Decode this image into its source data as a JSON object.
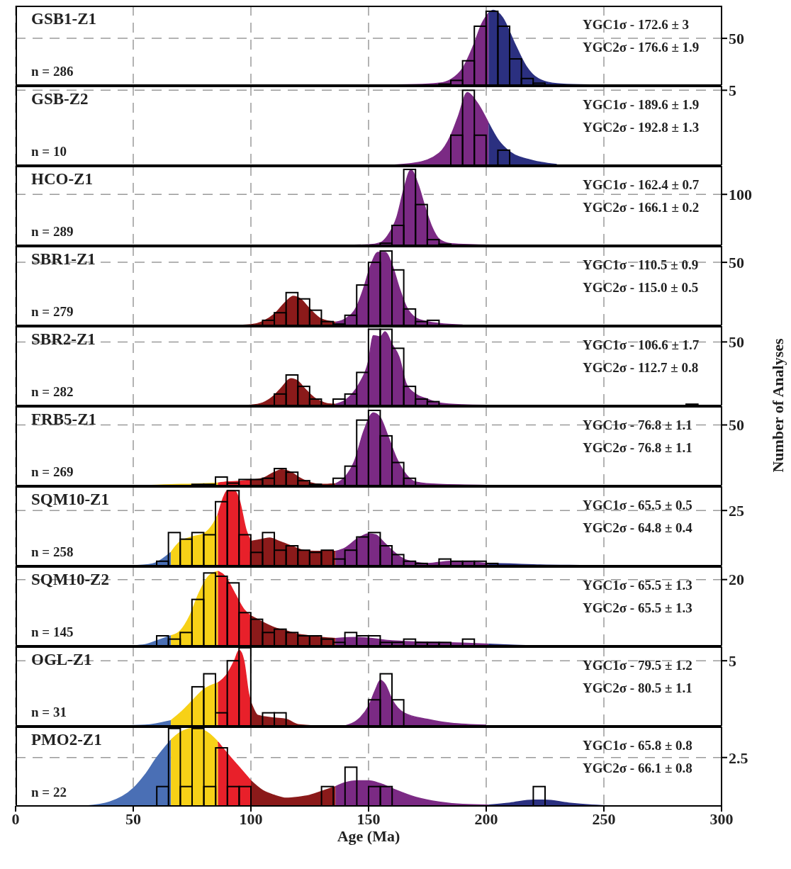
{
  "chart_data": [
    {
      "type": "histogram",
      "title": "GSB1-Z1",
      "annotations": [
        "n = 286",
        "YGC1σ - 172.6 ± 3",
        "YGC2σ - 176.6 ± 1.9"
      ],
      "bins": [
        180,
        185,
        190,
        195,
        200,
        205,
        210,
        215,
        220,
        225
      ],
      "values": [
        1,
        5,
        26,
        63,
        79,
        63,
        28,
        7,
        2
      ],
      "color": "#000000",
      "series": [
        {
          "type": "area",
          "color": "#7b2a84",
          "x": [
            150,
            170,
            180,
            185,
            190,
            195,
            198,
            201
          ],
          "values": [
            0,
            0.5,
            2,
            6,
            18,
            45,
            65,
            77
          ]
        },
        {
          "type": "area",
          "color": "#2b3080",
          "x": [
            201,
            203,
            207,
            212,
            217,
            222,
            230,
            240,
            250
          ],
          "values": [
            77,
            80,
            72,
            45,
            20,
            7,
            1.5,
            0.3,
            0
          ]
        }
      ],
      "xlim": [
        0,
        300
      ],
      "xticks": [
        0,
        50,
        100,
        150,
        200,
        250,
        300
      ],
      "ylim": [
        0,
        85
      ],
      "yticks": [
        50
      ],
      "grid": true,
      "tick_labels": "y"
    },
    {
      "type": "histogram",
      "title": "GSB-Z2",
      "annotations": [
        "n = 10",
        "YGC1σ - 189.6 ± 1.9",
        "YGC2σ - 192.8 ± 1.3"
      ],
      "bins": [
        185,
        190,
        195,
        200,
        205,
        210
      ],
      "values": [
        2,
        5,
        2,
        0,
        1
      ],
      "color": "#000000",
      "series": [
        {
          "type": "area",
          "color": "#7b2a84",
          "x": [
            160,
            170,
            180,
            185,
            188,
            192,
            196,
            201
          ],
          "values": [
            0,
            0.15,
            0.8,
            2,
            3.2,
            4.85,
            4.2,
            2.8
          ]
        },
        {
          "type": "area",
          "color": "#2b3080",
          "x": [
            201,
            205,
            210,
            220,
            230
          ],
          "values": [
            2.8,
            1.7,
            0.9,
            0.3,
            0.05
          ]
        }
      ],
      "xlim": [
        0,
        300
      ],
      "xticks": [
        0,
        50,
        100,
        150,
        200,
        250,
        300
      ],
      "ylim": [
        0,
        5.3
      ],
      "yticks": [
        5
      ],
      "grid": true,
      "tick_labels": "y"
    },
    {
      "type": "histogram",
      "title": "HCO-Z1",
      "annotations": [
        "n = 289",
        "YGC1σ - 162.4 ± 0.7",
        "YGC2σ - 166.1 ± 0.2"
      ],
      "bins": [
        155,
        160,
        165,
        170,
        175,
        180,
        185
      ],
      "values": [
        4,
        39,
        149,
        80,
        11,
        2
      ],
      "color": "#000000",
      "series": [
        {
          "type": "area",
          "color": "#7b2a84",
          "x": [
            140,
            150,
            155,
            158,
            162,
            165,
            168,
            171,
            174,
            177,
            180,
            185,
            195,
            205
          ],
          "values": [
            0,
            1,
            5,
            18,
            55,
            110,
            148,
            120,
            75,
            35,
            12,
            3,
            1,
            0
          ]
        }
      ],
      "xlim": [
        0,
        300
      ],
      "xticks": [
        0,
        50,
        100,
        150,
        200,
        250,
        300
      ],
      "ylim": [
        0,
        156
      ],
      "yticks": [
        100
      ],
      "grid": true,
      "tick_labels": "y"
    },
    {
      "type": "histogram",
      "title": "SBR1-Z1",
      "annotations": [
        "n = 279",
        "YGC1σ - 110.5 ± 0.9",
        "YGC2σ - 115.0 ± 0.5"
      ],
      "bins": [
        105,
        110,
        115,
        120,
        125,
        130,
        135,
        140,
        145,
        150,
        155,
        160,
        165,
        170,
        175,
        180
      ],
      "values": [
        4,
        10,
        26,
        21,
        12,
        3,
        1,
        8,
        32,
        50,
        59,
        44,
        13,
        3,
        4
      ],
      "color": "#000000",
      "series": [
        {
          "type": "area",
          "color": "#8b1a1a",
          "x": [
            95,
            100,
            105,
            110,
            115,
            118,
            121,
            125,
            130,
            136
          ],
          "values": [
            0,
            0.5,
            3,
            9,
            19,
            23,
            21,
            13,
            5,
            2.5
          ]
        },
        {
          "type": "area",
          "color": "#7b2a84",
          "x": [
            136,
            140,
            145,
            148,
            151,
            154,
            157,
            160,
            163,
            166,
            170,
            175,
            180,
            190
          ],
          "values": [
            2.5,
            5,
            15,
            30,
            48,
            58,
            58,
            48,
            30,
            15,
            6,
            3,
            1.5,
            0.3
          ]
        }
      ],
      "xlim": [
        0,
        300
      ],
      "xticks": [
        0,
        50,
        100,
        150,
        200,
        250,
        300
      ],
      "ylim": [
        0,
        63
      ],
      "yticks": [
        50
      ],
      "grid": true,
      "tick_labels": "y"
    },
    {
      "type": "histogram",
      "title": "SBR2-Z1",
      "ylabel": "Number of Analyses",
      "annotations": [
        "n = 282",
        "YGC1σ - 106.6 ± 1.7",
        "YGC2σ - 112.7 ± 0.8"
      ],
      "bins": [
        110,
        115,
        120,
        125,
        130,
        135,
        140,
        145,
        150,
        155,
        160,
        165,
        170,
        175,
        180,
        185,
        190,
        195,
        200,
        205,
        210,
        215,
        220,
        225,
        230,
        235,
        240,
        245,
        250,
        255,
        260,
        265,
        270,
        275,
        280,
        285,
        290
      ],
      "values": [
        9,
        24,
        15,
        5,
        0,
        5,
        9,
        26,
        60,
        60,
        45,
        15,
        5,
        3,
        0,
        0,
        0,
        0,
        0,
        0,
        0,
        0,
        0,
        0,
        0,
        0,
        0,
        0,
        0,
        0,
        0,
        0,
        0,
        0,
        0,
        1
      ],
      "color": "#000000",
      "series": [
        {
          "type": "area",
          "color": "#8b1a1a",
          "x": [
            95,
            100,
            105,
            110,
            113,
            117,
            120,
            123,
            127,
            130,
            133,
            136
          ],
          "values": [
            0,
            0.3,
            2,
            8,
            14,
            21,
            19,
            13,
            6,
            3,
            1.2,
            1
          ]
        },
        {
          "type": "area",
          "color": "#7b2a84",
          "x": [
            136,
            140,
            143,
            146,
            150,
            152,
            155,
            157,
            160,
            163,
            166,
            170,
            175,
            180,
            190,
            200
          ],
          "values": [
            1,
            4,
            9,
            17,
            35,
            55,
            54,
            58,
            48,
            38,
            17,
            9,
            5,
            2,
            0.5,
            0.1
          ]
        }
      ],
      "xlim": [
        0,
        300
      ],
      "xticks": [
        0,
        50,
        100,
        150,
        200,
        250,
        300
      ],
      "ylim": [
        0,
        62.5
      ],
      "yticks": [
        50
      ],
      "grid": true,
      "tick_labels": "y"
    },
    {
      "type": "histogram",
      "title": "FRB5-Z1",
      "annotations": [
        "n = 269",
        "YGC1σ - 76.8 ± 1.1",
        "YGC2σ - 76.8 ± 1.1"
      ],
      "bins": [
        75,
        80,
        85,
        90,
        95,
        100,
        105,
        110,
        115,
        120,
        125,
        130,
        135,
        140,
        145,
        150,
        155,
        160,
        165,
        170
      ],
      "values": [
        1,
        1,
        7,
        2,
        5,
        5,
        6,
        14,
        11,
        4,
        1,
        0,
        6,
        16,
        54,
        62,
        41,
        19,
        6
      ],
      "color": "#000000",
      "series": [
        {
          "type": "area",
          "color": "#f7d117",
          "x": [
            55,
            60,
            66,
            75,
            86
          ],
          "values": [
            0,
            0.3,
            0.8,
            1.2,
            2
          ]
        },
        {
          "type": "area",
          "color": "#e8202a",
          "x": [
            86,
            90,
            95,
            100
          ],
          "values": [
            2,
            3,
            3.5,
            4.5
          ]
        },
        {
          "type": "area",
          "color": "#8b1a1a",
          "x": [
            100,
            105,
            110,
            113,
            117,
            121,
            125,
            130,
            136
          ],
          "values": [
            4.5,
            6,
            11,
            13,
            11,
            6,
            2.5,
            1,
            1.5
          ]
        },
        {
          "type": "area",
          "color": "#7b2a84",
          "x": [
            136,
            140,
            144,
            148,
            152,
            155,
            158,
            162,
            166,
            170,
            180,
            200
          ],
          "values": [
            1.5,
            7,
            20,
            45,
            60,
            56,
            42,
            22,
            9,
            3,
            1,
            0.2
          ]
        }
      ],
      "xlim": [
        0,
        300
      ],
      "xticks": [
        0,
        50,
        100,
        150,
        200,
        250,
        300
      ],
      "ylim": [
        0,
        65.5
      ],
      "yticks": [
        50
      ],
      "grid": true,
      "tick_labels": "y"
    },
    {
      "type": "histogram",
      "title": "SQM10-Z1",
      "annotations": [
        "n = 258",
        "YGC1σ - 65.5 ± 0.5",
        "YGC2σ - 64.8 ± 0.4"
      ],
      "bins": [
        60,
        65,
        70,
        75,
        80,
        85,
        90,
        95,
        100,
        105,
        110,
        115,
        120,
        125,
        130,
        135,
        140,
        145,
        150,
        155,
        160,
        165,
        170,
        175,
        180,
        185,
        190,
        195,
        200,
        205
      ],
      "values": [
        2,
        15,
        12,
        15,
        14,
        29,
        34,
        14,
        6,
        15,
        7,
        9,
        7,
        6,
        7,
        3,
        7,
        13,
        15,
        9,
        5,
        2,
        1,
        0,
        3,
        2,
        2,
        2,
        1
      ],
      "color": "#000000",
      "series": [
        {
          "type": "area",
          "color": "#4a6fb5",
          "x": [
            50,
            55,
            60,
            66
          ],
          "values": [
            0,
            0.3,
            1.5,
            6
          ]
        },
        {
          "type": "area",
          "color": "#f7d117",
          "x": [
            66,
            70,
            75,
            80,
            84,
            86
          ],
          "values": [
            6,
            11,
            13,
            14.5,
            19,
            23
          ]
        },
        {
          "type": "area",
          "color": "#e8202a",
          "x": [
            86,
            88,
            90,
            93,
            95,
            98,
            100
          ],
          "values": [
            23,
            30,
            34,
            34,
            30,
            16,
            11
          ]
        },
        {
          "type": "area",
          "color": "#8b1a1a",
          "x": [
            100,
            105,
            108,
            112,
            117,
            122,
            127,
            132,
            136
          ],
          "values": [
            11,
            12,
            12.5,
            11,
            9,
            7,
            6.5,
            6.5,
            6.5
          ]
        },
        {
          "type": "area",
          "color": "#7b2a84",
          "x": [
            136,
            140,
            145,
            150,
            153,
            157,
            161,
            165,
            170,
            175,
            180,
            185,
            190,
            195,
            201
          ],
          "values": [
            6.5,
            8,
            12,
            14.5,
            14,
            10,
            6,
            3,
            1.5,
            1,
            1.5,
            2,
            2,
            1.5,
            1
          ]
        },
        {
          "type": "area",
          "color": "#2b3080",
          "x": [
            201,
            210,
            220,
            240,
            250
          ],
          "values": [
            1,
            0.8,
            0.4,
            0.1,
            0
          ]
        }
      ],
      "xlim": [
        0,
        300
      ],
      "xticks": [
        0,
        50,
        100,
        150,
        200,
        250,
        300
      ],
      "ylim": [
        0,
        36
      ],
      "yticks": [
        25
      ],
      "grid": true,
      "tick_labels": "y"
    },
    {
      "type": "histogram",
      "title": "SQM10-Z2",
      "annotations": [
        "n = 145",
        "YGC1σ - 65.5 ± 1.3",
        "YGC2σ - 65.5 ± 1.3"
      ],
      "bins": [
        60,
        65,
        70,
        75,
        80,
        85,
        90,
        95,
        100,
        105,
        110,
        115,
        120,
        125,
        130,
        135,
        140,
        145,
        150,
        155,
        160,
        165,
        170,
        175,
        180,
        185,
        190,
        195
      ],
      "values": [
        3,
        2,
        4,
        14,
        22,
        21,
        19,
        10,
        8,
        4,
        5,
        4,
        3,
        3,
        2,
        1,
        4,
        3,
        3,
        1,
        1,
        2,
        1,
        1,
        1,
        0,
        2
      ],
      "color": "#000000",
      "series": [
        {
          "type": "area",
          "color": "#4a6fb5",
          "x": [
            50,
            55,
            60,
            66
          ],
          "values": [
            0,
            0.3,
            1.5,
            3
          ]
        },
        {
          "type": "area",
          "color": "#f7d117",
          "x": [
            66,
            70,
            74,
            78,
            82,
            86
          ],
          "values": [
            3,
            4.5,
            9,
            16,
            21,
            22.5
          ]
        },
        {
          "type": "area",
          "color": "#e8202a",
          "x": [
            86,
            89,
            93,
            97,
            100
          ],
          "values": [
            22.5,
            21,
            16,
            11,
            9
          ]
        },
        {
          "type": "area",
          "color": "#8b1a1a",
          "x": [
            100,
            104,
            110,
            115,
            120,
            125,
            130,
            136
          ],
          "values": [
            9,
            7.5,
            5.5,
            4.5,
            3.5,
            3,
            2.5,
            2.2
          ]
        },
        {
          "type": "area",
          "color": "#7b2a84",
          "x": [
            136,
            145,
            150,
            160,
            170,
            180,
            190,
            201
          ],
          "values": [
            2.2,
            2.5,
            2.3,
            1.5,
            1.2,
            1,
            0.8,
            0.5
          ]
        },
        {
          "type": "area",
          "color": "#2b3080",
          "x": [
            201,
            210,
            220
          ],
          "values": [
            0.5,
            0.2,
            0
          ]
        }
      ],
      "xlim": [
        0,
        300
      ],
      "xticks": [
        0,
        50,
        100,
        150,
        200,
        250,
        300
      ],
      "ylim": [
        0,
        24
      ],
      "yticks": [
        20
      ],
      "grid": true,
      "tick_labels": "y"
    },
    {
      "type": "histogram",
      "title": "OGL-Z1",
      "annotations": [
        "n = 31",
        "YGC1σ - 79.5 ± 1.2",
        "YGC2σ - 80.5 ± 1.1"
      ],
      "bins": [
        75,
        80,
        85,
        90,
        95,
        100,
        105,
        110,
        115,
        120,
        125,
        130,
        135,
        140,
        145,
        150,
        155,
        160,
        165
      ],
      "values": [
        3,
        4,
        1,
        5,
        6,
        0,
        1,
        1,
        0,
        0,
        0,
        0,
        0,
        0,
        0,
        2,
        4,
        2
      ],
      "color": "#000000",
      "series": [
        {
          "type": "area",
          "color": "#4a6fb5",
          "x": [
            45,
            55,
            66
          ],
          "values": [
            0,
            0.05,
            0.4
          ]
        },
        {
          "type": "area",
          "color": "#f7d117",
          "x": [
            66,
            70,
            75,
            80,
            86
          ],
          "values": [
            0.4,
            1,
            1.9,
            2.8,
            3.3
          ]
        },
        {
          "type": "area",
          "color": "#e8202a",
          "x": [
            86,
            90,
            93,
            95,
            97,
            99,
            100
          ],
          "values": [
            3.3,
            4,
            5,
            5.8,
            5,
            2.5,
            1.8
          ]
        },
        {
          "type": "area",
          "color": "#8b1a1a",
          "x": [
            100,
            103,
            110,
            115,
            120,
            128
          ],
          "values": [
            1.8,
            0.8,
            0.6,
            0.5,
            0.1,
            0
          ]
        },
        {
          "type": "area",
          "color": "#7b2a84",
          "x": [
            140,
            145,
            150,
            153,
            155,
            157,
            160,
            165,
            175,
            185,
            200
          ],
          "values": [
            0,
            0.4,
            1.5,
            2.8,
            3.5,
            3.2,
            2,
            1,
            0.5,
            0.2,
            0.05
          ]
        }
      ],
      "xlim": [
        0,
        300
      ],
      "xticks": [
        0,
        50,
        100,
        150,
        200,
        250,
        300
      ],
      "ylim": [
        0,
        6.1
      ],
      "yticks": [
        5
      ],
      "grid": true,
      "tick_labels": "y"
    },
    {
      "type": "histogram",
      "title": "PMO2-Z1",
      "xlabel": "Age (Ma)",
      "annotations": [
        "n = 22",
        "YGC1σ - 65.8 ± 0.8",
        "YGC2σ - 66.1 ± 0.8"
      ],
      "bins": [
        60,
        65,
        70,
        75,
        80,
        85,
        90,
        95,
        100,
        105,
        110,
        115,
        120,
        125,
        130,
        135,
        140,
        145,
        150,
        155,
        160,
        165,
        170,
        175,
        180,
        185,
        190,
        195,
        200,
        205,
        210,
        215,
        220,
        225
      ],
      "values": [
        1,
        4,
        1,
        4,
        1,
        3,
        1,
        1,
        0,
        0,
        0,
        0,
        0,
        0,
        1,
        0,
        2,
        0,
        1,
        1,
        0,
        0,
        0,
        0,
        0,
        0,
        0,
        0,
        0,
        0,
        0,
        0,
        1
      ],
      "color": "#000000",
      "series": [
        {
          "type": "area",
          "color": "#4a6fb5",
          "x": [
            30,
            40,
            50,
            55,
            60,
            66
          ],
          "values": [
            0,
            0.2,
            0.9,
            1.6,
            2.5,
            3.4
          ]
        },
        {
          "type": "area",
          "color": "#f7d117",
          "x": [
            66,
            70,
            75,
            80,
            86
          ],
          "values": [
            3.4,
            3.8,
            4,
            3.9,
            3.3
          ]
        },
        {
          "type": "area",
          "color": "#e8202a",
          "x": [
            86,
            90,
            95,
            100
          ],
          "values": [
            3.3,
            2.7,
            2,
            1.3
          ]
        },
        {
          "type": "area",
          "color": "#8b1a1a",
          "x": [
            100,
            105,
            110,
            115,
            120,
            125,
            130,
            136
          ],
          "values": [
            1.3,
            0.8,
            0.55,
            0.4,
            0.45,
            0.55,
            0.75,
            1
          ]
        },
        {
          "type": "area",
          "color": "#7b2a84",
          "x": [
            136,
            140,
            145,
            150,
            155,
            160,
            170,
            180,
            190,
            201
          ],
          "values": [
            1,
            1.2,
            1.3,
            1.3,
            1.15,
            0.9,
            0.45,
            0.2,
            0.08,
            0.05
          ]
        },
        {
          "type": "area",
          "color": "#2b3080",
          "x": [
            201,
            210,
            220,
            225,
            235,
            245,
            255
          ],
          "values": [
            0.05,
            0.15,
            0.3,
            0.3,
            0.15,
            0.05,
            0
          ]
        }
      ],
      "xlim": [
        0,
        300
      ],
      "xticks": [
        0,
        50,
        100,
        150,
        200,
        250,
        300
      ],
      "ylim": [
        0,
        4.1
      ],
      "yticks": [
        2.5
      ],
      "grid": true
    }
  ]
}
